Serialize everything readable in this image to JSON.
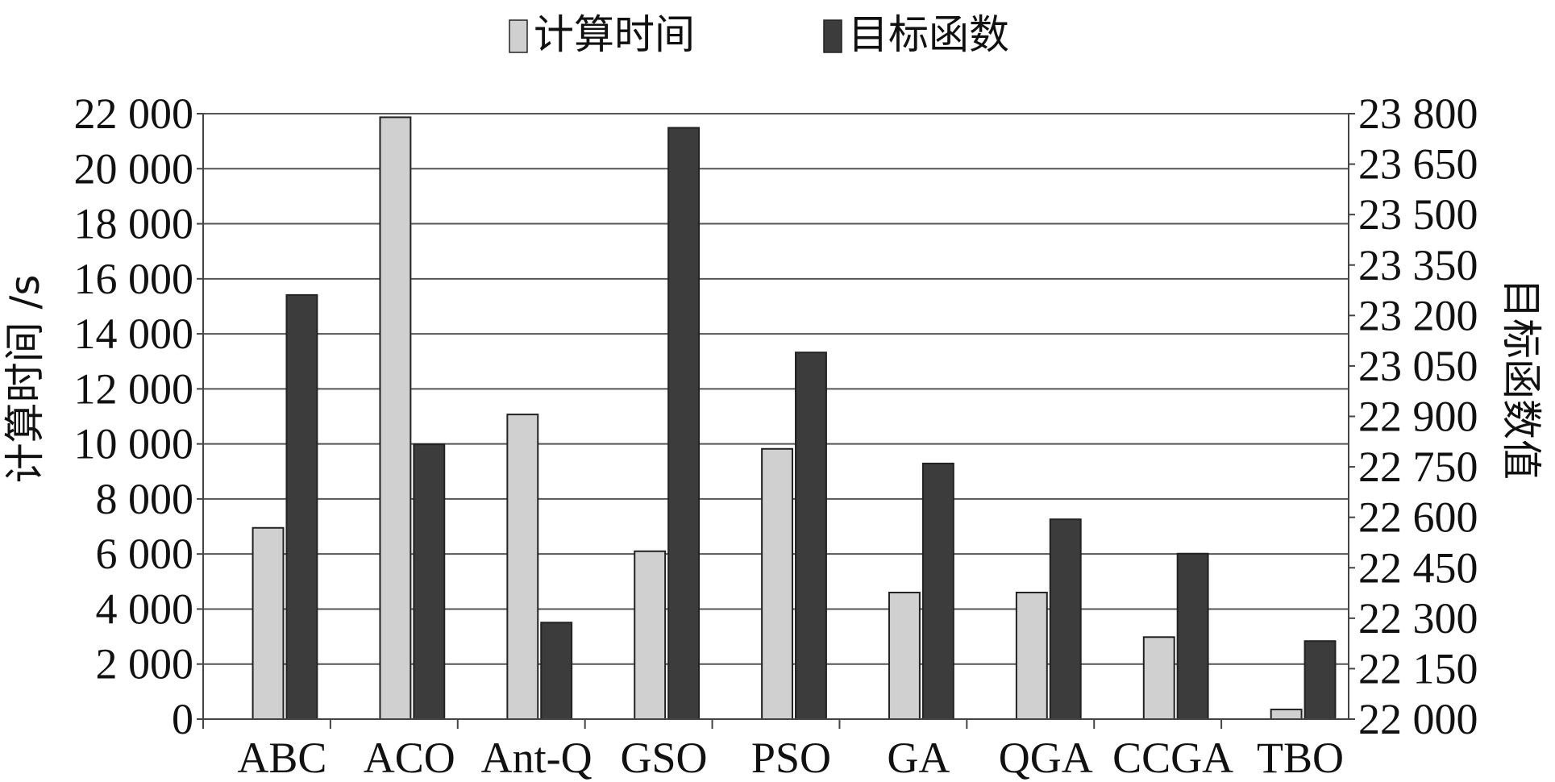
{
  "chart_data": {
    "type": "bar",
    "title": "",
    "categories": [
      "ABC",
      "ACO",
      "Ant-Q",
      "GSO",
      "PSO",
      "GA",
      "QGA",
      "CCGA",
      "TBO"
    ],
    "series": [
      {
        "name": "计算时间",
        "axis": "left",
        "color": "#d0d0d0",
        "values": [
          6950,
          21870,
          11070,
          6100,
          9820,
          4600,
          4600,
          2980,
          350
        ]
      },
      {
        "name": "目标函数",
        "axis": "right",
        "color": "#3c3c3c",
        "values": [
          23261,
          22817,
          22287,
          23758,
          23090,
          22760,
          22594,
          22492,
          22232
        ]
      }
    ],
    "ylabel": "计算时间 /s",
    "y2label": "目标函数值",
    "ylim": [
      0,
      22000
    ],
    "y2lim": [
      22000,
      23800
    ],
    "yticks": [
      "0",
      "2 000",
      "4 000",
      "6 000",
      "8 000",
      "10 000",
      "12 000",
      "14 000",
      "16 000",
      "18 000",
      "20 000",
      "22 000"
    ],
    "y2ticks": [
      "22 000",
      "22 150",
      "22 300",
      "22 450",
      "22 600",
      "22 750",
      "22 900",
      "23 050",
      "23 200",
      "23 350",
      "23 500",
      "23 650",
      "23 800"
    ],
    "grid": true,
    "legend": "top-center"
  }
}
